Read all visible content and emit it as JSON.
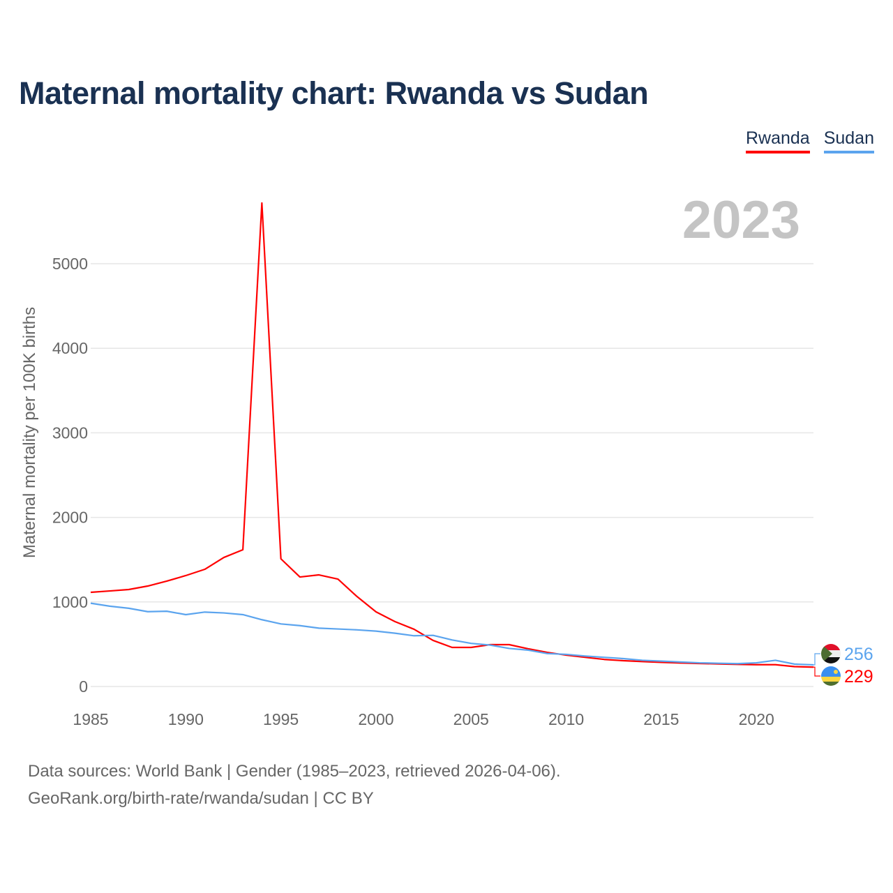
{
  "title": "Maternal mortality chart: Rwanda vs Sudan",
  "year_label": "2023",
  "footer": {
    "line1": "Data sources: World Bank | Gender (1985–2023, retrieved 2026-04-06).",
    "line2": "GeoRank.org/birth-rate/rwanda/sudan | CC BY"
  },
  "chart_data": {
    "type": "line",
    "title": "Maternal mortality chart: Rwanda vs Sudan",
    "xlabel": "",
    "ylabel": "Maternal mortality per 100K births",
    "xlim": [
      1985,
      2023
    ],
    "ylim": [
      0,
      5700
    ],
    "x_ticks": [
      1985,
      1990,
      1995,
      2000,
      2005,
      2010,
      2015,
      2020
    ],
    "y_ticks": [
      0,
      1000,
      2000,
      3000,
      4000,
      5000
    ],
    "legend_position": "top-right",
    "grid": true,
    "x": [
      1985,
      1986,
      1987,
      1988,
      1989,
      1990,
      1991,
      1992,
      1993,
      1994,
      1995,
      1996,
      1997,
      1998,
      1999,
      2000,
      2001,
      2002,
      2003,
      2004,
      2005,
      2006,
      2007,
      2008,
      2009,
      2010,
      2011,
      2012,
      2013,
      2014,
      2015,
      2016,
      2017,
      2018,
      2019,
      2020,
      2021,
      2022,
      2023
    ],
    "series": [
      {
        "name": "Rwanda",
        "color": "#ff0000",
        "end_label": "229",
        "values": [
          1114,
          1130,
          1147,
          1188,
          1246,
          1312,
          1386,
          1526,
          1617,
          5718,
          1510,
          1295,
          1320,
          1270,
          1064,
          883,
          767,
          677,
          545,
          462,
          462,
          495,
          495,
          446,
          404,
          371,
          345,
          320,
          305,
          295,
          285,
          278,
          272,
          267,
          262,
          258,
          258,
          235,
          229
        ]
      },
      {
        "name": "Sudan",
        "color": "#5ba4ee",
        "end_label": "256",
        "values": [
          985,
          950,
          925,
          885,
          890,
          850,
          880,
          870,
          850,
          790,
          740,
          720,
          690,
          680,
          670,
          655,
          630,
          600,
          605,
          550,
          510,
          490,
          450,
          430,
          390,
          380,
          360,
          345,
          330,
          310,
          300,
          290,
          280,
          275,
          270,
          280,
          310,
          265,
          256
        ]
      }
    ]
  }
}
